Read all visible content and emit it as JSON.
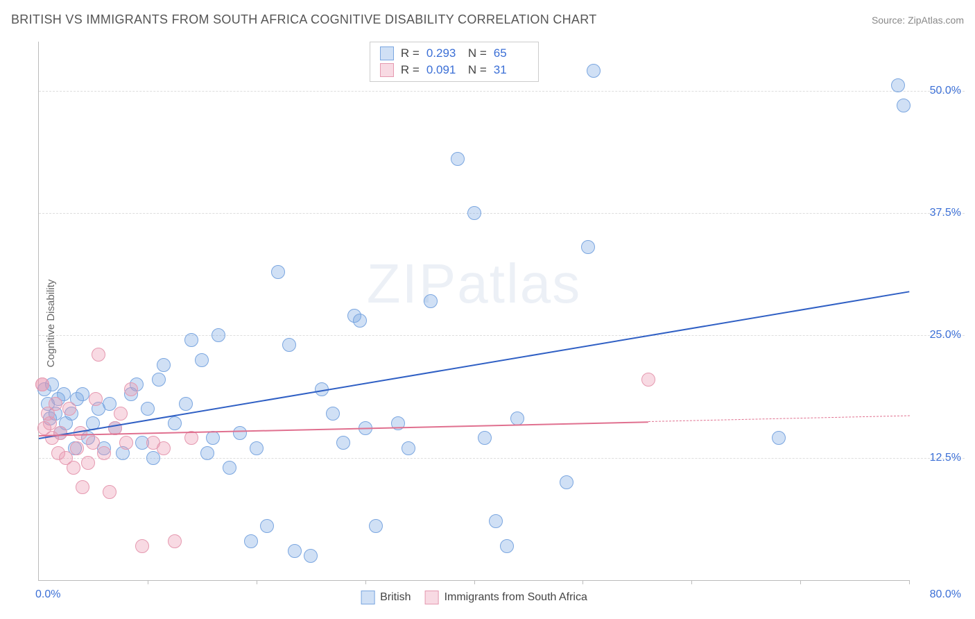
{
  "header": {
    "title": "BRITISH VS IMMIGRANTS FROM SOUTH AFRICA COGNITIVE DISABILITY CORRELATION CHART",
    "source": "Source: ZipAtlas.com"
  },
  "chart": {
    "type": "scatter",
    "y_axis_label": "Cognitive Disability",
    "xlim": [
      0,
      80
    ],
    "ylim": [
      0,
      55
    ],
    "x_tick_positions": [
      10,
      20,
      30,
      40,
      50,
      60,
      70,
      80
    ],
    "x_label_min": "0.0%",
    "x_label_max": "80.0%",
    "y_ticks": [
      {
        "v": 12.5,
        "label": "12.5%"
      },
      {
        "v": 25.0,
        "label": "25.0%"
      },
      {
        "v": 37.5,
        "label": "37.5%"
      },
      {
        "v": 50.0,
        "label": "50.0%"
      }
    ],
    "grid_color": "#dddddd",
    "axis_color": "#bbbbbb",
    "background_color": "#ffffff",
    "watermark_text_a": "ZIP",
    "watermark_text_b": "atlas",
    "series": [
      {
        "name": "British",
        "fill_color": "rgba(120,165,225,0.35)",
        "stroke_color": "#7aa6e0",
        "line_color": "#2f5fc4",
        "marker_radius": 9,
        "trend": {
          "x1": 0,
          "y1": 14.5,
          "x2": 80,
          "y2": 29.5,
          "dash_from_x": 80
        },
        "stats": {
          "R": "0.293",
          "N": "65"
        },
        "points": [
          [
            0.5,
            19.5
          ],
          [
            0.8,
            18.0
          ],
          [
            1.0,
            16.5
          ],
          [
            1.2,
            20.0
          ],
          [
            1.5,
            17.0
          ],
          [
            1.8,
            18.5
          ],
          [
            2.0,
            15.0
          ],
          [
            2.3,
            19.0
          ],
          [
            2.5,
            16.0
          ],
          [
            3.0,
            17.0
          ],
          [
            3.3,
            13.5
          ],
          [
            3.5,
            18.5
          ],
          [
            4.0,
            19.0
          ],
          [
            4.5,
            14.5
          ],
          [
            5.0,
            16.0
          ],
          [
            5.5,
            17.5
          ],
          [
            6.0,
            13.5
          ],
          [
            6.5,
            18.0
          ],
          [
            7.0,
            15.5
          ],
          [
            7.7,
            13.0
          ],
          [
            8.5,
            19.0
          ],
          [
            9.0,
            20.0
          ],
          [
            9.5,
            14.0
          ],
          [
            10,
            17.5
          ],
          [
            10.5,
            12.5
          ],
          [
            11,
            20.5
          ],
          [
            11.5,
            22.0
          ],
          [
            12.5,
            16.0
          ],
          [
            13.5,
            18.0
          ],
          [
            14,
            24.5
          ],
          [
            15,
            22.5
          ],
          [
            15.5,
            13.0
          ],
          [
            16,
            14.5
          ],
          [
            16.5,
            25.0
          ],
          [
            17.5,
            11.5
          ],
          [
            18.5,
            15.0
          ],
          [
            19.5,
            4.0
          ],
          [
            20,
            13.5
          ],
          [
            21,
            5.5
          ],
          [
            22,
            31.5
          ],
          [
            23,
            24.0
          ],
          [
            23.5,
            3.0
          ],
          [
            25,
            2.5
          ],
          [
            26,
            19.5
          ],
          [
            27,
            17.0
          ],
          [
            28,
            14.0
          ],
          [
            29,
            27.0
          ],
          [
            29.5,
            26.5
          ],
          [
            30,
            15.5
          ],
          [
            31,
            5.5
          ],
          [
            33,
            16.0
          ],
          [
            34,
            13.5
          ],
          [
            36,
            28.5
          ],
          [
            38.5,
            43.0
          ],
          [
            40,
            37.5
          ],
          [
            41,
            14.5
          ],
          [
            42,
            6.0
          ],
          [
            43,
            3.5
          ],
          [
            44,
            16.5
          ],
          [
            48.5,
            10.0
          ],
          [
            50.5,
            34.0
          ],
          [
            51,
            52.0
          ],
          [
            68,
            14.5
          ],
          [
            79,
            50.5
          ],
          [
            79.5,
            48.5
          ]
        ]
      },
      {
        "name": "Immigrants from South Africa",
        "fill_color": "rgba(235,150,175,0.35)",
        "stroke_color": "#e599b0",
        "line_color": "#e0708f",
        "marker_radius": 9,
        "trend": {
          "x1": 0,
          "y1": 14.8,
          "x2": 56,
          "y2": 16.2,
          "dash_from_x": 56,
          "dash_to_x": 80,
          "dash_y2": 16.8
        },
        "stats": {
          "R": "0.091",
          "N": "31"
        },
        "points": [
          [
            0.3,
            20.0
          ],
          [
            0.3,
            20.0
          ],
          [
            0.5,
            15.5
          ],
          [
            0.8,
            17.0
          ],
          [
            1.0,
            16.0
          ],
          [
            1.2,
            14.5
          ],
          [
            1.5,
            18.0
          ],
          [
            1.8,
            13.0
          ],
          [
            2.0,
            15.0
          ],
          [
            2.5,
            12.5
          ],
          [
            2.8,
            17.5
          ],
          [
            3.2,
            11.5
          ],
          [
            3.5,
            13.5
          ],
          [
            3.8,
            15.0
          ],
          [
            4.0,
            9.5
          ],
          [
            4.5,
            12.0
          ],
          [
            5.0,
            14.0
          ],
          [
            5.2,
            18.5
          ],
          [
            5.5,
            23.0
          ],
          [
            6.0,
            13.0
          ],
          [
            6.5,
            9.0
          ],
          [
            7.0,
            15.5
          ],
          [
            7.5,
            17.0
          ],
          [
            8.0,
            14.0
          ],
          [
            8.5,
            19.5
          ],
          [
            9.5,
            3.5
          ],
          [
            10.5,
            14.0
          ],
          [
            11.5,
            13.5
          ],
          [
            12.5,
            4.0
          ],
          [
            14,
            14.5
          ],
          [
            56,
            20.5
          ]
        ]
      }
    ],
    "bottom_legend": [
      {
        "swatch_fill": "rgba(120,165,225,0.35)",
        "swatch_stroke": "#7aa6e0",
        "label": "British"
      },
      {
        "swatch_fill": "rgba(235,150,175,0.35)",
        "swatch_stroke": "#e599b0",
        "label": "Immigrants from South Africa"
      }
    ]
  }
}
